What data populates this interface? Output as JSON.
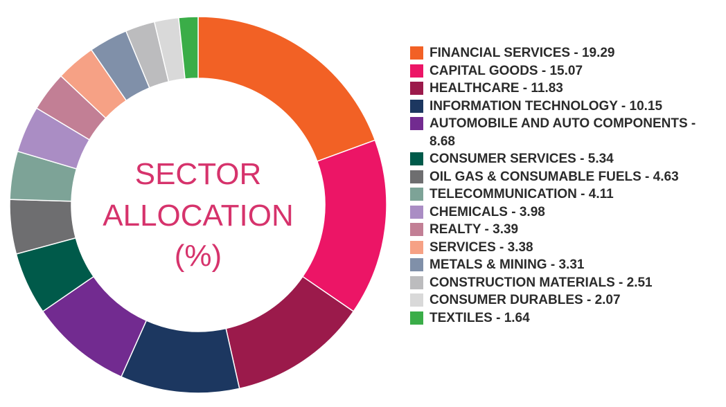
{
  "chart_data": {
    "type": "pie",
    "title_lines": [
      "SECTOR",
      "ALLOCATION",
      "(%)"
    ],
    "legend_position": "right",
    "slices": [
      {
        "label": "FINANCIAL SERVICES",
        "value": 19.29,
        "value_text": "19.29",
        "color": "#f26125"
      },
      {
        "label": "CAPITAL GOODS",
        "value": 15.07,
        "value_text": "15.07",
        "color": "#ec1566"
      },
      {
        "label": "HEALTHCARE",
        "value": 11.83,
        "value_text": "11.83",
        "color": "#9b1a4b"
      },
      {
        "label": "INFORMATION TECHNOLOGY",
        "value": 10.15,
        "value_text": "10.15",
        "color": "#1c3760"
      },
      {
        "label": "AUTOMOBILE AND AUTO COMPONENTS",
        "value": 8.68,
        "value_text": "8.68",
        "color": "#722b90"
      },
      {
        "label": "CONSUMER SERVICES",
        "value": 5.34,
        "value_text": "5.34",
        "color": "#005a4a"
      },
      {
        "label": "OIL GAS & CONSUMABLE FUELS",
        "value": 4.63,
        "value_text": "4.63",
        "color": "#6e6e70"
      },
      {
        "label": "TELECOMMUNICATION",
        "value": 4.11,
        "value_text": "4.11",
        "color": "#7da397"
      },
      {
        "label": "CHEMICALS",
        "value": 3.98,
        "value_text": "3.98",
        "color": "#aa8dc4"
      },
      {
        "label": "REALTY",
        "value": 3.39,
        "value_text": "3.39",
        "color": "#c27f95"
      },
      {
        "label": "SERVICES",
        "value": 3.38,
        "value_text": "3.38",
        "color": "#f6a185"
      },
      {
        "label": "METALS & MINING",
        "value": 3.31,
        "value_text": "3.31",
        "color": "#8090a9"
      },
      {
        "label": "CONSTRUCTION MATERIALS",
        "value": 2.51,
        "value_text": "2.51",
        "color": "#bcbcbe"
      },
      {
        "label": "CONSUMER DURABLES",
        "value": 2.07,
        "value_text": "2.07",
        "color": "#d9d9d9"
      },
      {
        "label": "TEXTILES",
        "value": 1.64,
        "value_text": "1.64",
        "color": "#3aad48"
      }
    ]
  }
}
